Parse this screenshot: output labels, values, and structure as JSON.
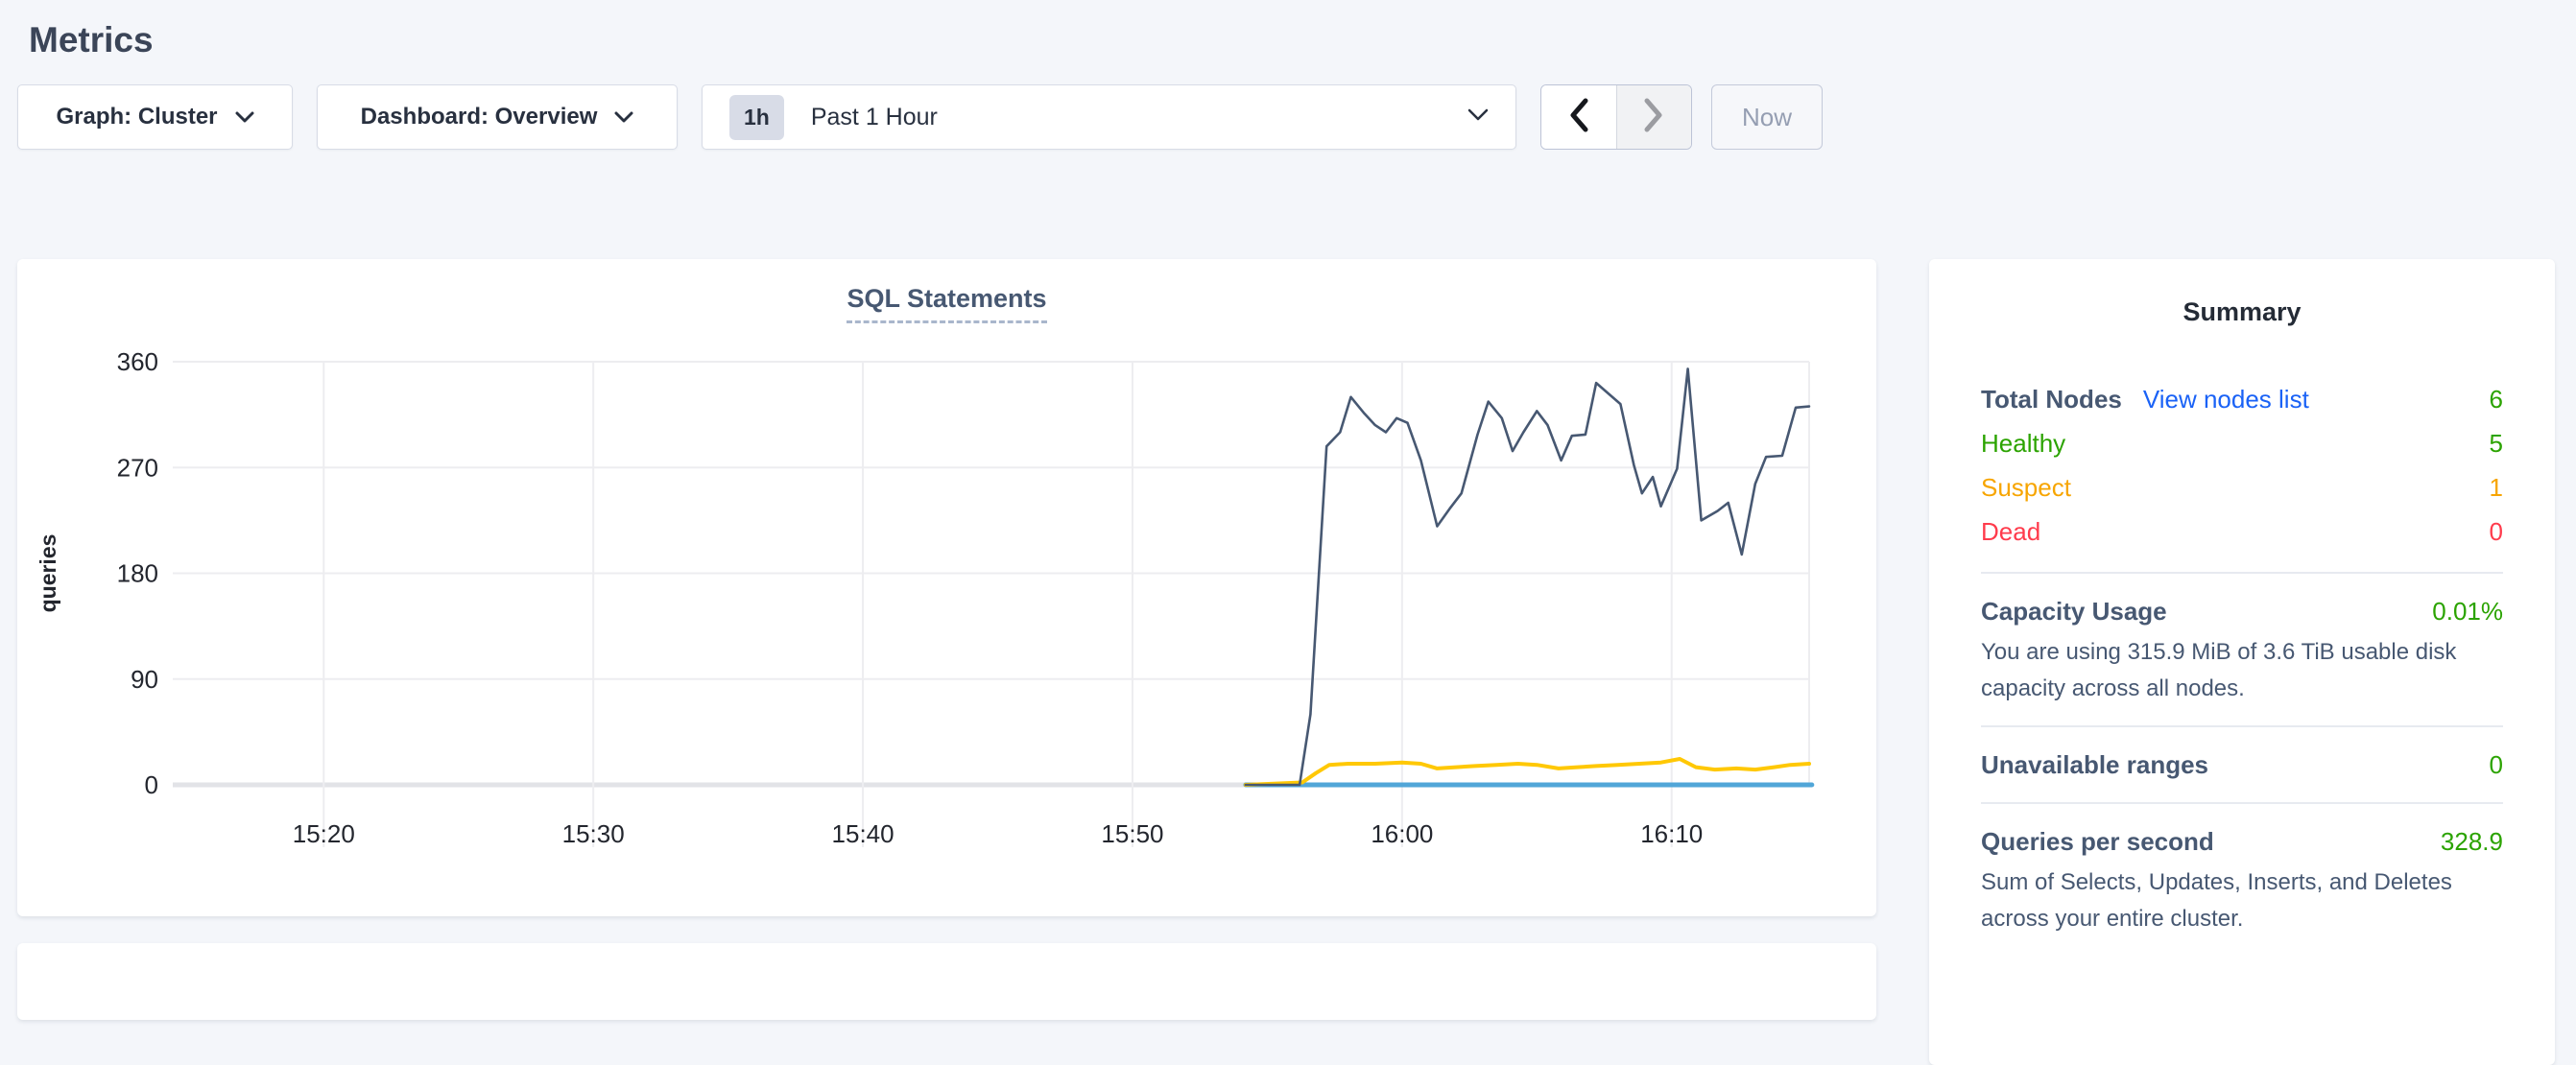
{
  "heading": {
    "title": "Metrics"
  },
  "toolbar": {
    "graph_dropdown": "Graph: Cluster",
    "dashboard_dropdown": "Dashboard: Overview",
    "range_badge": "1h",
    "range_label": "Past 1 Hour",
    "now_label": "Now"
  },
  "colors": {
    "healthy": "#2ba300",
    "suspect": "#f7a500",
    "dead": "#ff3b4c",
    "link": "#1a62f6",
    "value_green": "#2ba300"
  },
  "summary": {
    "title": "Summary",
    "total_nodes": {
      "label": "Total Nodes",
      "link": "View nodes list",
      "value": "6"
    },
    "healthy": {
      "label": "Healthy",
      "value": "5"
    },
    "suspect": {
      "label": "Suspect",
      "value": "1"
    },
    "dead": {
      "label": "Dead",
      "value": "0"
    },
    "capacity": {
      "label": "Capacity Usage",
      "value": "0.01%",
      "description": "You are using 315.9 MiB of 3.6 TiB usable disk capacity across all nodes."
    },
    "unavailable": {
      "label": "Unavailable ranges",
      "value": "0"
    },
    "qps": {
      "label": "Queries per second",
      "value": "328.9",
      "description": "Sum of Selects, Updates, Inserts, and Deletes across your entire cluster."
    }
  },
  "chart_data": {
    "type": "line",
    "title": "SQL Statements",
    "ylabel": "queries",
    "xlabel": "",
    "x_unit": "minutes after 15:00",
    "x_domain": [
      14.4,
      75.1
    ],
    "y_domain": [
      0,
      360
    ],
    "y_ticks": [
      0,
      90,
      180,
      270,
      360
    ],
    "x_ticks": [
      {
        "m": 20,
        "label": "15:20"
      },
      {
        "m": 30,
        "label": "15:30"
      },
      {
        "m": 40,
        "label": "15:40"
      },
      {
        "m": 50,
        "label": "15:50"
      },
      {
        "m": 60,
        "label": "16:00"
      },
      {
        "m": 70,
        "label": "16:10"
      }
    ],
    "grid": true,
    "legend": "none",
    "series": [
      {
        "name": "flat-zero-series",
        "color": "#51a6d8",
        "width": 5,
        "points": [
          [
            54.2,
            0
          ],
          [
            75.2,
            0
          ]
        ]
      },
      {
        "name": "low-yellow-series",
        "color": "#ffc805",
        "width": 4,
        "points": [
          [
            54.2,
            0
          ],
          [
            56.3,
            2
          ],
          [
            56.8,
            10
          ],
          [
            57.3,
            17
          ],
          [
            58.0,
            18
          ],
          [
            59.0,
            18
          ],
          [
            60.0,
            19
          ],
          [
            60.7,
            18
          ],
          [
            61.3,
            14
          ],
          [
            62.0,
            15
          ],
          [
            62.7,
            16
          ],
          [
            63.5,
            17
          ],
          [
            64.3,
            18
          ],
          [
            65.0,
            17
          ],
          [
            65.8,
            14
          ],
          [
            66.5,
            15
          ],
          [
            67.2,
            16
          ],
          [
            68.0,
            17
          ],
          [
            68.8,
            18
          ],
          [
            69.6,
            19
          ],
          [
            70.3,
            22
          ],
          [
            70.9,
            15
          ],
          [
            71.6,
            13
          ],
          [
            72.4,
            14
          ],
          [
            73.1,
            13
          ],
          [
            73.8,
            15
          ],
          [
            74.4,
            17
          ],
          [
            75.1,
            18
          ]
        ]
      },
      {
        "name": "main-navy-series",
        "color": "#475872",
        "width": 2.6,
        "points": [
          [
            54.2,
            0
          ],
          [
            56.2,
            0
          ],
          [
            56.6,
            60
          ],
          [
            57.2,
            288
          ],
          [
            57.7,
            300
          ],
          [
            58.1,
            330
          ],
          [
            58.6,
            316
          ],
          [
            59.0,
            306
          ],
          [
            59.4,
            300
          ],
          [
            59.8,
            312
          ],
          [
            60.2,
            308
          ],
          [
            60.7,
            276
          ],
          [
            61.3,
            220
          ],
          [
            61.8,
            236
          ],
          [
            62.2,
            248
          ],
          [
            62.8,
            298
          ],
          [
            63.2,
            326
          ],
          [
            63.7,
            312
          ],
          [
            64.1,
            284
          ],
          [
            64.5,
            300
          ],
          [
            65.0,
            318
          ],
          [
            65.4,
            306
          ],
          [
            65.9,
            276
          ],
          [
            66.3,
            297
          ],
          [
            66.8,
            298
          ],
          [
            67.2,
            342
          ],
          [
            67.6,
            334
          ],
          [
            68.1,
            324
          ],
          [
            68.6,
            272
          ],
          [
            68.9,
            248
          ],
          [
            69.3,
            262
          ],
          [
            69.6,
            237
          ],
          [
            70.2,
            269
          ],
          [
            70.6,
            354
          ],
          [
            71.1,
            225
          ],
          [
            71.7,
            233
          ],
          [
            72.1,
            240
          ],
          [
            72.6,
            196
          ],
          [
            73.1,
            256
          ],
          [
            73.5,
            279
          ],
          [
            74.1,
            280
          ],
          [
            74.6,
            321
          ],
          [
            75.1,
            322
          ]
        ]
      }
    ]
  }
}
